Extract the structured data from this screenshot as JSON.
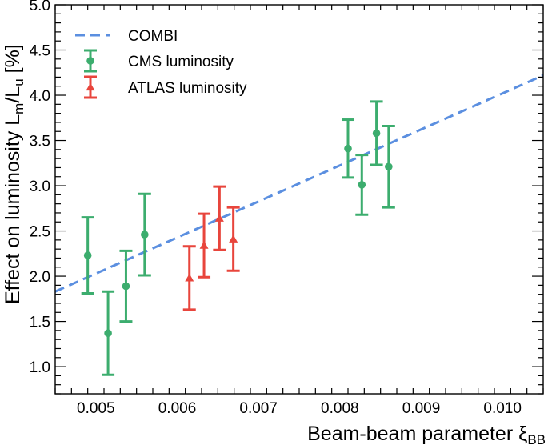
{
  "chart_data": {
    "type": "scatter",
    "xlabel": "Beam-beam parameter ξ",
    "xlabel_subscript": "BB",
    "ylabel": "Effect on luminosity L",
    "ylabel_sub1": "m",
    "ylabel_mid": "/L",
    "ylabel_sub2": "u",
    "ylabel_unit": " [%]",
    "xlim": [
      0.0045,
      0.0105
    ],
    "ylim": [
      0.7,
      5.0
    ],
    "xticks": [
      {
        "value": 0.005,
        "label": "0.005"
      },
      {
        "value": 0.006,
        "label": "0.006"
      },
      {
        "value": 0.007,
        "label": "0.007"
      },
      {
        "value": 0.008,
        "label": "0.008"
      },
      {
        "value": 0.009,
        "label": "0.009"
      },
      {
        "value": 0.01,
        "label": "0.010"
      }
    ],
    "yticks": [
      {
        "value": 1.0,
        "label": "1.0"
      },
      {
        "value": 1.5,
        "label": "1.5"
      },
      {
        "value": 2.0,
        "label": "2.0"
      },
      {
        "value": 2.5,
        "label": "2.5"
      },
      {
        "value": 3.0,
        "label": "3.0"
      },
      {
        "value": 3.5,
        "label": "3.5"
      },
      {
        "value": 4.0,
        "label": "4.0"
      },
      {
        "value": 4.5,
        "label": "4.5"
      },
      {
        "value": 5.0,
        "label": "5.0"
      }
    ],
    "legend_position": "top-left",
    "series": [
      {
        "name": "COMBI",
        "kind": "line",
        "color": "#5b8fe0",
        "dashed": true,
        "points": [
          [
            0.0045,
            1.83
          ],
          [
            0.0105,
            4.22
          ]
        ]
      },
      {
        "name": "CMS luminosity",
        "kind": "points",
        "marker": "circle",
        "color": "#3cad6e",
        "points": [
          {
            "x": 0.0049,
            "y": 2.23,
            "lo": 1.81,
            "hi": 2.65
          },
          {
            "x": 0.00515,
            "y": 1.37,
            "lo": 0.91,
            "hi": 1.83
          },
          {
            "x": 0.00537,
            "y": 1.89,
            "lo": 1.5,
            "hi": 2.28
          },
          {
            "x": 0.0056,
            "y": 2.46,
            "lo": 2.01,
            "hi": 2.91
          },
          {
            "x": 0.0081,
            "y": 3.41,
            "lo": 3.09,
            "hi": 3.73
          },
          {
            "x": 0.00827,
            "y": 3.01,
            "lo": 2.68,
            "hi": 3.34
          },
          {
            "x": 0.00845,
            "y": 3.58,
            "lo": 3.23,
            "hi": 3.93
          },
          {
            "x": 0.0086,
            "y": 3.21,
            "lo": 2.76,
            "hi": 3.66
          }
        ]
      },
      {
        "name": "ATLAS luminosity",
        "kind": "points",
        "marker": "triangle",
        "color": "#e8453c",
        "points": [
          {
            "x": 0.00615,
            "y": 1.98,
            "lo": 1.63,
            "hi": 2.33
          },
          {
            "x": 0.00633,
            "y": 2.34,
            "lo": 1.99,
            "hi": 2.69
          },
          {
            "x": 0.00652,
            "y": 2.64,
            "lo": 2.29,
            "hi": 2.99
          },
          {
            "x": 0.00669,
            "y": 2.41,
            "lo": 2.06,
            "hi": 2.76
          }
        ]
      }
    ]
  }
}
